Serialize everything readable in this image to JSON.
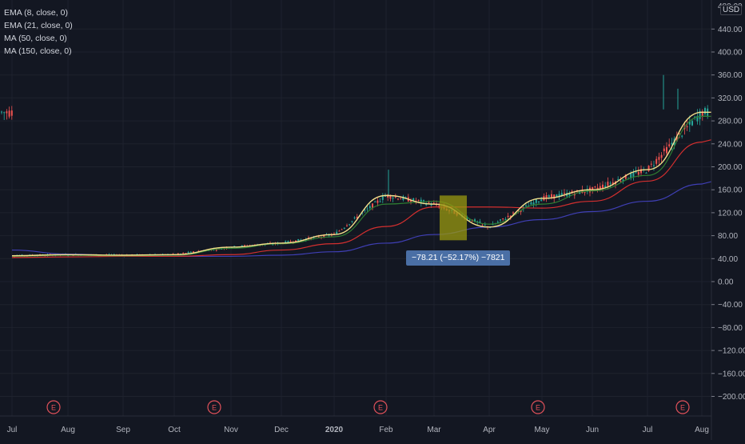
{
  "legend": {
    "items": [
      "EMA (8, close, 0)",
      "EMA (21, close, 0)",
      "MA (50, close, 0)",
      "MA (150, close, 0)"
    ]
  },
  "axis": {
    "currency": "USD",
    "y_ticks": [
      "440.00",
      "400.00",
      "360.00",
      "320.00",
      "280.00",
      "240.00",
      "200.00",
      "160.00",
      "120.00",
      "80.00",
      "40.00",
      "0.00",
      "−40.00",
      "−80.00",
      "−120.00",
      "−160.00",
      "−200.00"
    ],
    "top_clipped_tick": "480.00",
    "x_ticks": [
      "Jul",
      "Aug",
      "Sep",
      "Oct",
      "Nov",
      "Dec",
      "2020",
      "Feb",
      "Mar",
      "Apr",
      "May",
      "Jun",
      "Jul",
      "Aug"
    ]
  },
  "earnings_marker": "E",
  "measurement": {
    "label": "−78.21 (−52.17%) −7821"
  },
  "colors": {
    "background": "#131722",
    "ema8": "#f5e08c",
    "ema21": "#2e7d32",
    "ma50": "#d32f2f",
    "ma150": "#3f3fb5",
    "candle_up": "#26a69a",
    "candle_down": "#ef5350",
    "measure_box": "#9a9a10",
    "earnings": "#e0515a"
  },
  "chart_data": {
    "type": "line",
    "title": "",
    "ylim": [
      -220,
      480
    ],
    "x": [
      "Jul",
      "Aug",
      "Sep",
      "Oct",
      "Nov",
      "Dec",
      "2020",
      "Feb",
      "Mar",
      "Apr",
      "May",
      "Jun",
      "Jul",
      "Aug"
    ],
    "series": [
      {
        "name": "EMA (8, close, 0)",
        "values": [
          45,
          47,
          46,
          47,
          60,
          67,
          82,
          150,
          135,
          95,
          145,
          160,
          195,
          295
        ]
      },
      {
        "name": "EMA (21, close, 0)",
        "values": [
          44,
          46,
          45,
          46,
          58,
          66,
          78,
          135,
          140,
          100,
          135,
          158,
          185,
          288
        ]
      },
      {
        "name": "MA (50, close, 0)",
        "values": [
          42,
          43,
          44,
          44,
          47,
          55,
          66,
          96,
          130,
          130,
          128,
          140,
          175,
          243
        ]
      },
      {
        "name": "MA (150, close, 0)",
        "values": [
          55,
          48,
          45,
          44,
          44,
          46,
          52,
          67,
          82,
          95,
          108,
          122,
          140,
          170
        ]
      }
    ],
    "earnings_dates": [
      "Jul-late",
      "Oct-late",
      "Jan-late",
      "Apr-late",
      "Jul-late"
    ],
    "measurement_box": {
      "from": 150,
      "to": 72,
      "change": -78.21,
      "percent": -52.17
    }
  }
}
